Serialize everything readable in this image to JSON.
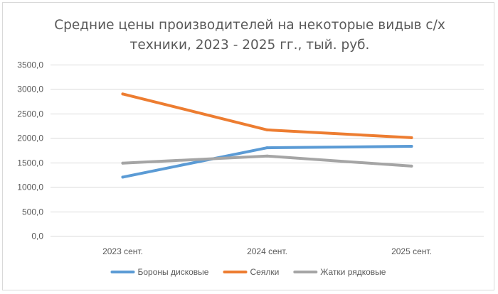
{
  "chart_data": {
    "type": "line",
    "title_lines": [
      "Средние цены производителей на некоторые видыв с/х",
      "техники,  2023 - 2025 гг., тый. руб."
    ],
    "categories": [
      "2023 сент.",
      "2024 сент.",
      "2025 сент."
    ],
    "ylim": [
      0,
      3500
    ],
    "yticks": [
      0,
      500,
      1000,
      1500,
      2000,
      2500,
      3000,
      3500
    ],
    "ytick_labels": [
      "0,0",
      "500,0",
      "1000,0",
      "1500,0",
      "2000,0",
      "2500,0",
      "3000,0",
      "3500,0"
    ],
    "grid": true,
    "legend_position": "bottom",
    "series": [
      {
        "name": "Бороны дисковые",
        "color": "#5b9bd5",
        "values": [
          1200,
          1800,
          1830
        ]
      },
      {
        "name": "Сеялки",
        "color": "#ed7d31",
        "values": [
          2900,
          2165,
          2005
        ]
      },
      {
        "name": "Жатки рядковые",
        "color": "#a5a5a5",
        "values": [
          1485,
          1630,
          1425
        ]
      }
    ]
  }
}
